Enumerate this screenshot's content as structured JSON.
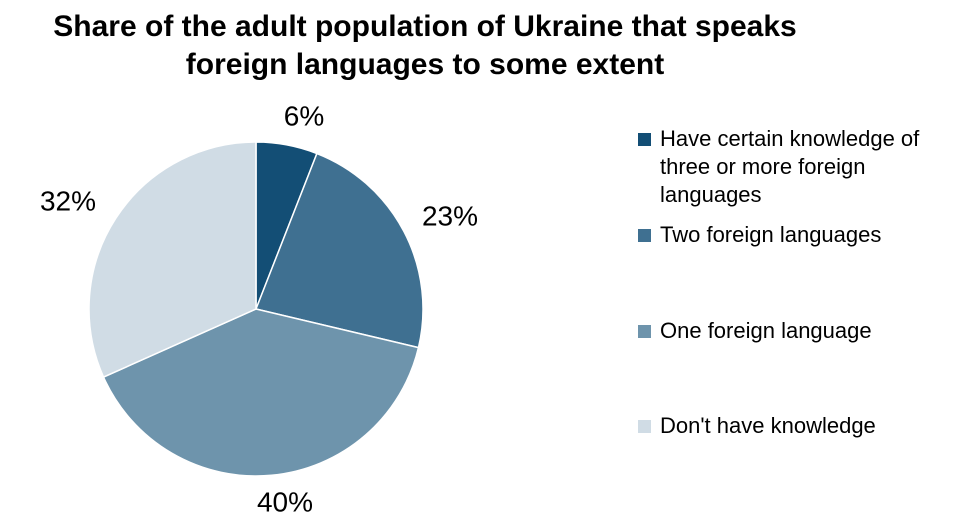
{
  "chart_data": {
    "type": "pie",
    "title": [
      "Share of the adult population of Ukraine that speaks",
      "foreign languages to some extent"
    ],
    "legend_position": "right",
    "slices": [
      {
        "name": "Have certain knowledge of three or more foreign languages",
        "value": 6,
        "label": "6%",
        "color": "#134e75"
      },
      {
        "name": "Two foreign languages",
        "value": 23,
        "label": "23%",
        "color": "#3f7091"
      },
      {
        "name": "One foreign language",
        "value": 40,
        "label": "40%",
        "color": "#6e94ac"
      },
      {
        "name": "Don't have knowledge",
        "value": 32,
        "label": "32%",
        "color": "#d0dce5"
      }
    ],
    "legend_lines": [
      [
        "Have certain knowledge of",
        "three or more foreign",
        "languages"
      ],
      [
        "Two foreign languages"
      ],
      [
        "One foreign language"
      ],
      [
        "Don't have knowledge"
      ]
    ]
  }
}
